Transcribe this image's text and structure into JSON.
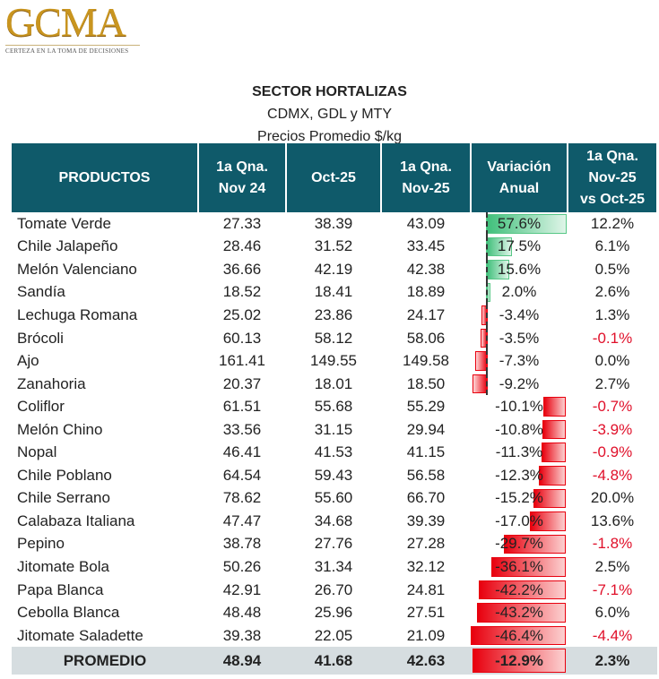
{
  "logo": {
    "name": "GCMA",
    "tagline": "CERTEZA EN LA TOMA DE DECISIONES"
  },
  "title": {
    "line1": "SECTOR HORTALIZAS",
    "line2": "CDMX, GDL y MTY",
    "line3": "Precios Promedio $/kg"
  },
  "headers": [
    "PRODUCTOS",
    "1a Qna.\nNov 24",
    "Oct-25",
    "1a Qna.\nNov-25",
    "Variación\nAnual",
    "1a Qna.\nNov-25\nvs Oct-25"
  ],
  "rows": [
    [
      "Tomate Verde",
      "27.33",
      "38.39",
      "43.09",
      "57.6%",
      "12.2%"
    ],
    [
      "Chile Jalapeño",
      "28.46",
      "31.52",
      "33.45",
      "17.5%",
      "6.1%"
    ],
    [
      "Melón Valenciano",
      "36.66",
      "42.19",
      "42.38",
      "15.6%",
      "0.5%"
    ],
    [
      "Sandía",
      "18.52",
      "18.41",
      "18.89",
      "2.0%",
      "2.6%"
    ],
    [
      "Lechuga Romana",
      "25.02",
      "23.86",
      "24.17",
      "-3.4%",
      "1.3%"
    ],
    [
      "Brócoli",
      "60.13",
      "58.12",
      "58.06",
      "-3.5%",
      "-0.1%"
    ],
    [
      "Ajo",
      "161.41",
      "149.55",
      "149.58",
      "-7.3%",
      "0.0%"
    ],
    [
      "Zanahoria",
      "20.37",
      "18.01",
      "18.50",
      "-9.2%",
      "2.7%"
    ],
    [
      "Coliflor",
      "61.51",
      "55.68",
      "55.29",
      "-10.1%",
      "-0.7%"
    ],
    [
      "Melón Chino",
      "33.56",
      "31.15",
      "29.94",
      "-10.8%",
      "-3.9%"
    ],
    [
      "Nopal",
      "46.41",
      "41.53",
      "41.15",
      "-11.3%",
      "-0.9%"
    ],
    [
      "Chile Poblano",
      "64.54",
      "59.43",
      "56.58",
      "-12.3%",
      "-4.8%"
    ],
    [
      "Chile Serrano",
      "78.62",
      "55.60",
      "66.70",
      "-15.2%",
      "20.0%"
    ],
    [
      "Calabaza Italiana",
      "47.47",
      "34.68",
      "39.39",
      "-17.0%",
      "13.6%"
    ],
    [
      "Pepino",
      "38.78",
      "27.76",
      "27.28",
      "-29.7%",
      "-1.8%"
    ],
    [
      "Jitomate Bola",
      "50.26",
      "31.34",
      "32.12",
      "-36.1%",
      "2.5%"
    ],
    [
      "Papa Blanca",
      "42.91",
      "26.70",
      "24.81",
      "-42.2%",
      "-7.1%"
    ],
    [
      "Cebolla Blanca",
      "48.48",
      "25.96",
      "27.51",
      "-43.2%",
      "6.0%"
    ],
    [
      "Jitomate Saladette",
      "39.38",
      "22.05",
      "21.09",
      "-46.4%",
      "-4.4%"
    ]
  ],
  "average": [
    "PROMEDIO",
    "48.94",
    "41.68",
    "42.63",
    "-12.9%",
    "2.3%"
  ]
}
